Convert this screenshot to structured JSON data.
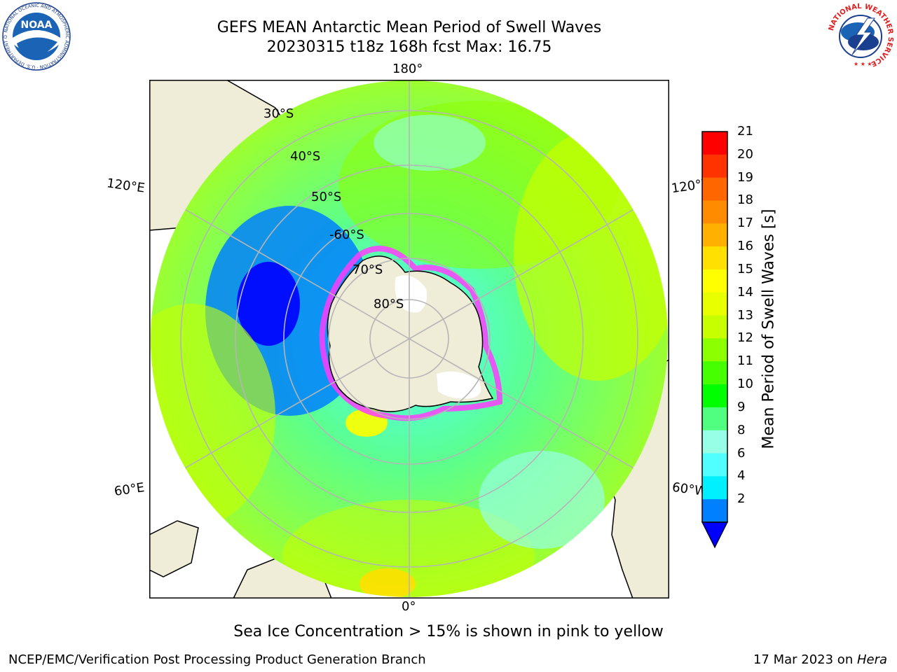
{
  "header": {
    "title_line1": "GEFS MEAN Antarctic Mean Period of Swell Waves",
    "title_line2": "20230315 t18z 168h fcst   Max: 16.75"
  },
  "logos": {
    "left": {
      "text": "NOAA",
      "ring_text": "NATIONAL OCEANIC AND ATMOSPHERIC ADMINISTRATION · U.S. DEPARTMENT OF COMMERCE"
    },
    "right": {
      "ring_text": "NATIONAL WEATHER SERVICE"
    }
  },
  "map": {
    "longitude_labels": {
      "top": "180°",
      "bottom": "0°",
      "upper_left": "120°E",
      "upper_right": "120°W",
      "lower_left": "60°E",
      "lower_right": "60°W"
    },
    "latitude_labels": [
      "30°S",
      "40°S",
      "50°S",
      "-60°S",
      "70°S",
      "80°S"
    ],
    "colors": {
      "land": "#efecd8",
      "sea_ice_edge": "#ff3cff",
      "grid": "#b5b5b5"
    }
  },
  "colorbar": {
    "label": "Mean Period of Swell Waves [s]",
    "ticks": [
      "21",
      "20",
      "19",
      "18",
      "17",
      "16",
      "15",
      "14",
      "13",
      "12",
      "11",
      "10",
      "9",
      "8",
      "6",
      "4",
      "2"
    ],
    "colors_top_to_bottom": [
      "#ff0000",
      "#ff3300",
      "#ff6600",
      "#ff8c00",
      "#ffb000",
      "#ffe000",
      "#ffff00",
      "#e8ff00",
      "#c8ff00",
      "#8cff00",
      "#46ff00",
      "#00ff00",
      "#50ff80",
      "#96ffe6",
      "#50ffff",
      "#00f0ff",
      "#0080ff"
    ],
    "extend_color": "#0000ff"
  },
  "caption": "Sea Ice Concentration > 15% is shown in pink to yellow",
  "footer": {
    "left": "NCEP/EMC/Verification Post Processing Product Generation Branch",
    "right_prefix": "17 Mar 2023 on ",
    "right_host": "Hera"
  }
}
